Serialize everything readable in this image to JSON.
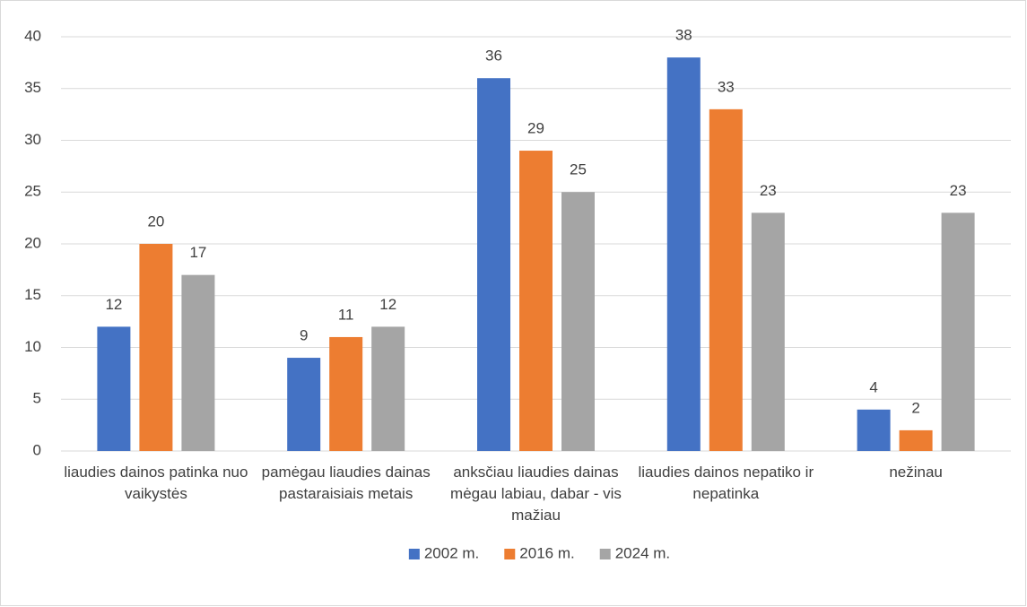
{
  "chart_data": {
    "type": "bar",
    "categories": [
      "liaudies dainos patinka nuo vaikystės",
      "pamėgau liaudies dainas pastaraisiais metais",
      "anksčiau liaudies dainas mėgau labiau, dabar - vis mažiau",
      "liaudies dainos nepatiko ir nepatinka",
      "nežinau"
    ],
    "series": [
      {
        "name": "2002 m.",
        "color": "#4472c4",
        "values": [
          12,
          9,
          36,
          38,
          4
        ]
      },
      {
        "name": "2016 m.",
        "color": "#ed7d31",
        "values": [
          20,
          11,
          29,
          33,
          2
        ]
      },
      {
        "name": "2024 m.",
        "color": "#a5a5a5",
        "values": [
          17,
          12,
          25,
          23,
          23
        ]
      }
    ],
    "ylim": [
      0,
      40
    ],
    "yticks": [
      0,
      5,
      10,
      15,
      20,
      25,
      30,
      35,
      40
    ],
    "grid": true,
    "legend": "bottom"
  }
}
